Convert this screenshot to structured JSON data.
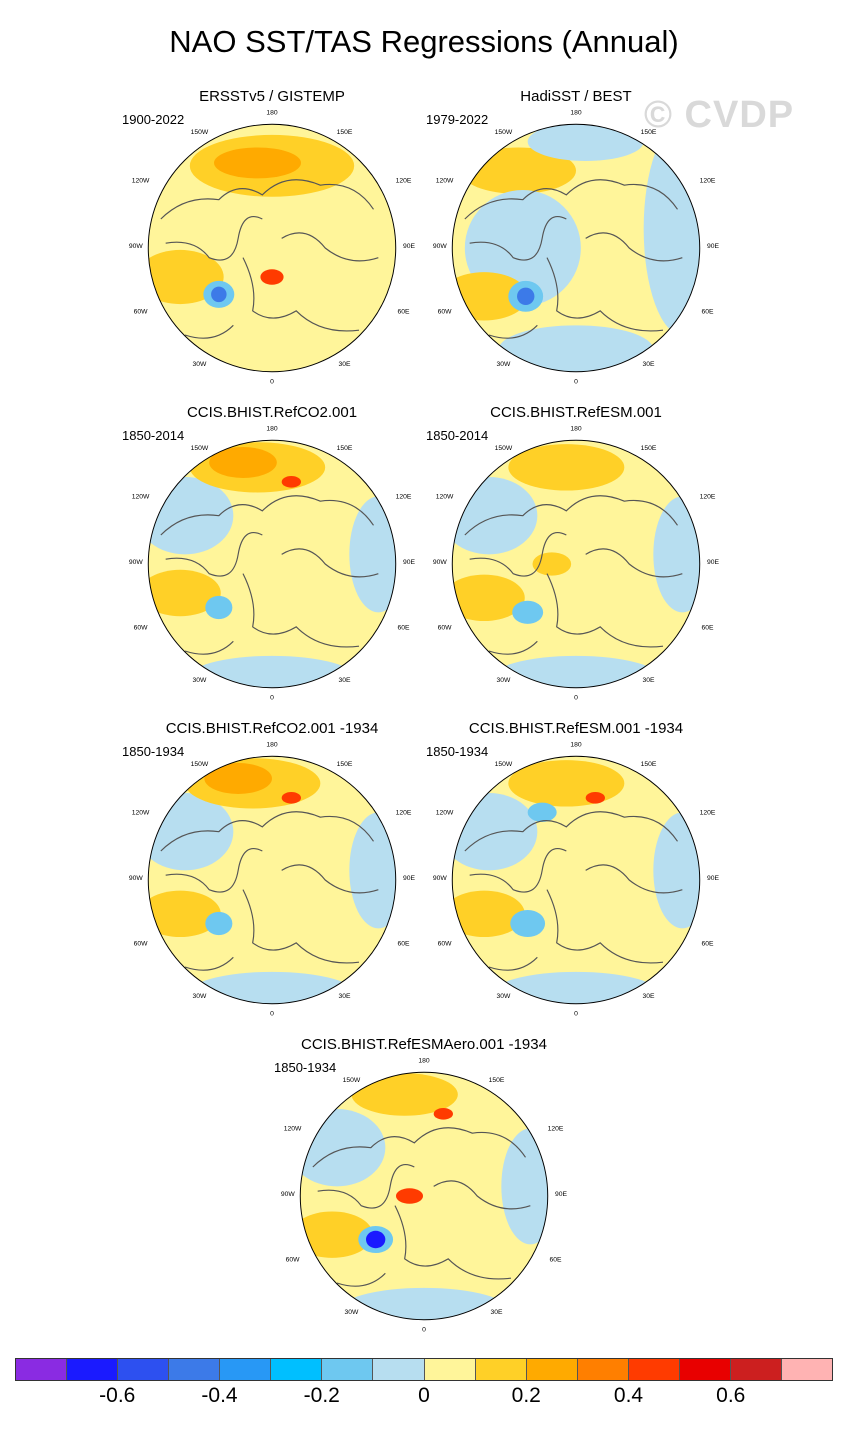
{
  "title": "NAO SST/TAS Regressions (Annual)",
  "watermark": "© CVDP",
  "lon_labels": {
    "top": "180",
    "upper_left": "150W",
    "upper_right": "150E",
    "left_upper": "120W",
    "right_upper": "120E",
    "left": "90W",
    "right": "90E",
    "left_lower": "60W",
    "right_lower": "60E",
    "lower_left": "30W",
    "lower_right": "30E",
    "bottom": "0"
  },
  "panels": [
    {
      "title": "ERSSTv5 / GISTEMP",
      "period": "1900-2022"
    },
    {
      "title": "HadiSST / BEST",
      "period": "1979-2022"
    },
    {
      "title": "CCIS.BHIST.RefCO2.001",
      "period": "1850-2014"
    },
    {
      "title": "CCIS.BHIST.RefESM.001",
      "period": "1850-2014"
    },
    {
      "title": "CCIS.BHIST.RefCO2.001 -1934",
      "period": "1850-1934"
    },
    {
      "title": "CCIS.BHIST.RefESM.001 -1934",
      "period": "1850-1934"
    },
    {
      "title": "CCIS.BHIST.RefESMAero.001 -1934",
      "period": "1850-1934"
    }
  ],
  "colorbar": {
    "colors": [
      "#8a2be2",
      "#1a1aff",
      "#2d50f0",
      "#3c7ae8",
      "#2898f5",
      "#00bfff",
      "#6ec8f0",
      "#b7def0",
      "#fff59a",
      "#ffd027",
      "#ffaa00",
      "#ff7f00",
      "#ff3b00",
      "#e80000",
      "#cc1f1f",
      "#ffb3b3"
    ],
    "ticks": [
      "-0.6",
      "-0.4",
      "-0.2",
      "0",
      "0.2",
      "0.4",
      "0.6"
    ]
  }
}
